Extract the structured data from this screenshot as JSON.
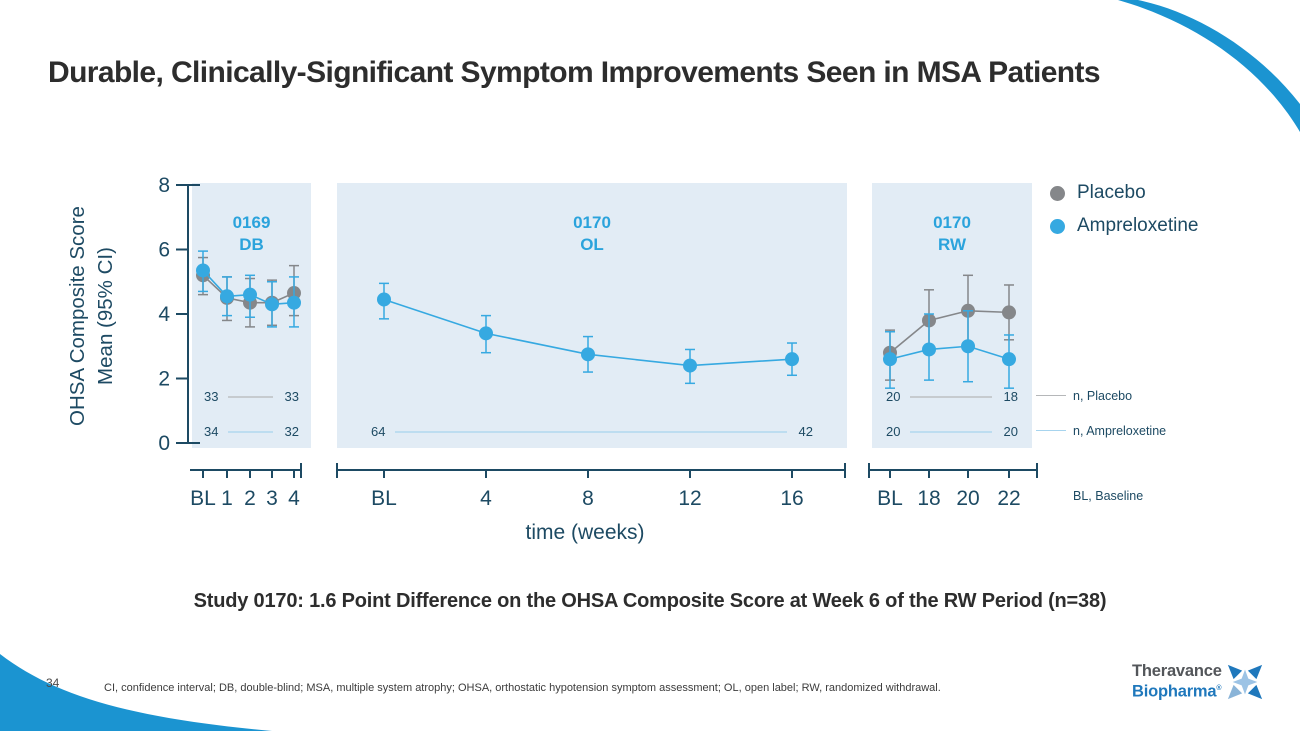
{
  "slide": {
    "title": "Durable, Clinically-Significant Symptom Improvements Seen in MSA Patients",
    "subtitle": "Study 0170: 1.6 Point Difference on the OHSA Composite Score at Week 6 of the RW Period (n=38)",
    "footnote": "CI, confidence interval; DB, double-blind; MSA, multiple system atrophy; OHSA, orthostatic hypotension symptom assessment; OL, open label; RW, randomized withdrawal.",
    "page_number": "34"
  },
  "logo": {
    "line1": "Theravance",
    "line2": "Biopharma",
    "registered_mark": "®"
  },
  "colors": {
    "accent_blue": "#1b94d1",
    "ampreloxetine": "#36a9e1",
    "placebo": "#85878a",
    "navy_text": "#1d4a63",
    "panel_bg": "#e2ecf5",
    "panel_label": "#2ba3dc",
    "n_line_placebo": "#b5b7b9",
    "n_line_ampreloxetine": "#a7d4ee",
    "logo_gray": "#53565a",
    "logo_blue": "#1f78bc"
  },
  "legend": {
    "items": [
      {
        "label": "Placebo",
        "key": "placebo"
      },
      {
        "label": "Ampreloxetine",
        "key": "ampreloxetine"
      }
    ]
  },
  "annotations": {
    "n_placebo": "n, Placebo",
    "n_ampreloxetine": "n, Ampreloxetine",
    "bl_baseline": "BL, Baseline"
  },
  "chart_data": {
    "type": "line",
    "ylabel_line1": "OHSA Composite Score",
    "ylabel_line2": "Mean (95% CI)",
    "xlabel": "time (weeks)",
    "ylim": [
      0,
      8
    ],
    "yticks": [
      0,
      2,
      4,
      6,
      8
    ],
    "panels": [
      {
        "label_line1": "0169",
        "label_line2": "DB",
        "categories": [
          "BL",
          "1",
          "2",
          "3",
          "4"
        ],
        "series": [
          {
            "name": "Placebo",
            "key": "placebo",
            "values": [
              5.2,
              4.5,
              4.35,
              4.35,
              4.65
            ],
            "ci_low": [
              4.6,
              3.8,
              3.6,
              3.65,
              3.95
            ],
            "ci_high": [
              5.75,
              5.15,
              5.1,
              5.05,
              5.5
            ]
          },
          {
            "name": "Ampreloxetine",
            "key": "ampreloxetine",
            "values": [
              5.35,
              4.55,
              4.6,
              4.3,
              4.35
            ],
            "ci_low": [
              4.7,
              3.95,
              3.9,
              3.6,
              3.6
            ],
            "ci_high": [
              5.95,
              5.15,
              5.2,
              5.0,
              5.15
            ]
          }
        ],
        "n_rows": [
          {
            "series": "placebo",
            "start": "33",
            "end": "33"
          },
          {
            "series": "ampreloxetine",
            "start": "34",
            "end": "32"
          }
        ]
      },
      {
        "label_line1": "0170",
        "label_line2": "OL",
        "categories": [
          "BL",
          "4",
          "8",
          "12",
          "16"
        ],
        "series": [
          {
            "name": "Ampreloxetine",
            "key": "ampreloxetine",
            "values": [
              4.45,
              3.4,
              2.75,
              2.4,
              2.6
            ],
            "ci_low": [
              3.85,
              2.8,
              2.2,
              1.85,
              2.1
            ],
            "ci_high": [
              4.95,
              3.95,
              3.3,
              2.9,
              3.1
            ]
          }
        ],
        "n_rows": [
          {
            "series": "ampreloxetine",
            "start": "64",
            "end": "42"
          }
        ]
      },
      {
        "label_line1": "0170",
        "label_line2": "RW",
        "categories": [
          "BL",
          "18",
          "20",
          "22"
        ],
        "series": [
          {
            "name": "Placebo",
            "key": "placebo",
            "values": [
              2.8,
              3.8,
              4.1,
              4.05
            ],
            "ci_low": [
              1.95,
              2.9,
              3.05,
              3.2
            ],
            "ci_high": [
              3.5,
              4.75,
              5.2,
              4.9
            ]
          },
          {
            "name": "Ampreloxetine",
            "key": "ampreloxetine",
            "values": [
              2.6,
              2.9,
              3.0,
              2.6
            ],
            "ci_low": [
              1.7,
              1.95,
              1.9,
              1.7
            ],
            "ci_high": [
              3.45,
              4.0,
              4.1,
              3.35
            ]
          }
        ],
        "n_rows": [
          {
            "series": "placebo",
            "start": "20",
            "end": "18"
          },
          {
            "series": "ampreloxetine",
            "start": "20",
            "end": "20"
          }
        ]
      }
    ]
  }
}
